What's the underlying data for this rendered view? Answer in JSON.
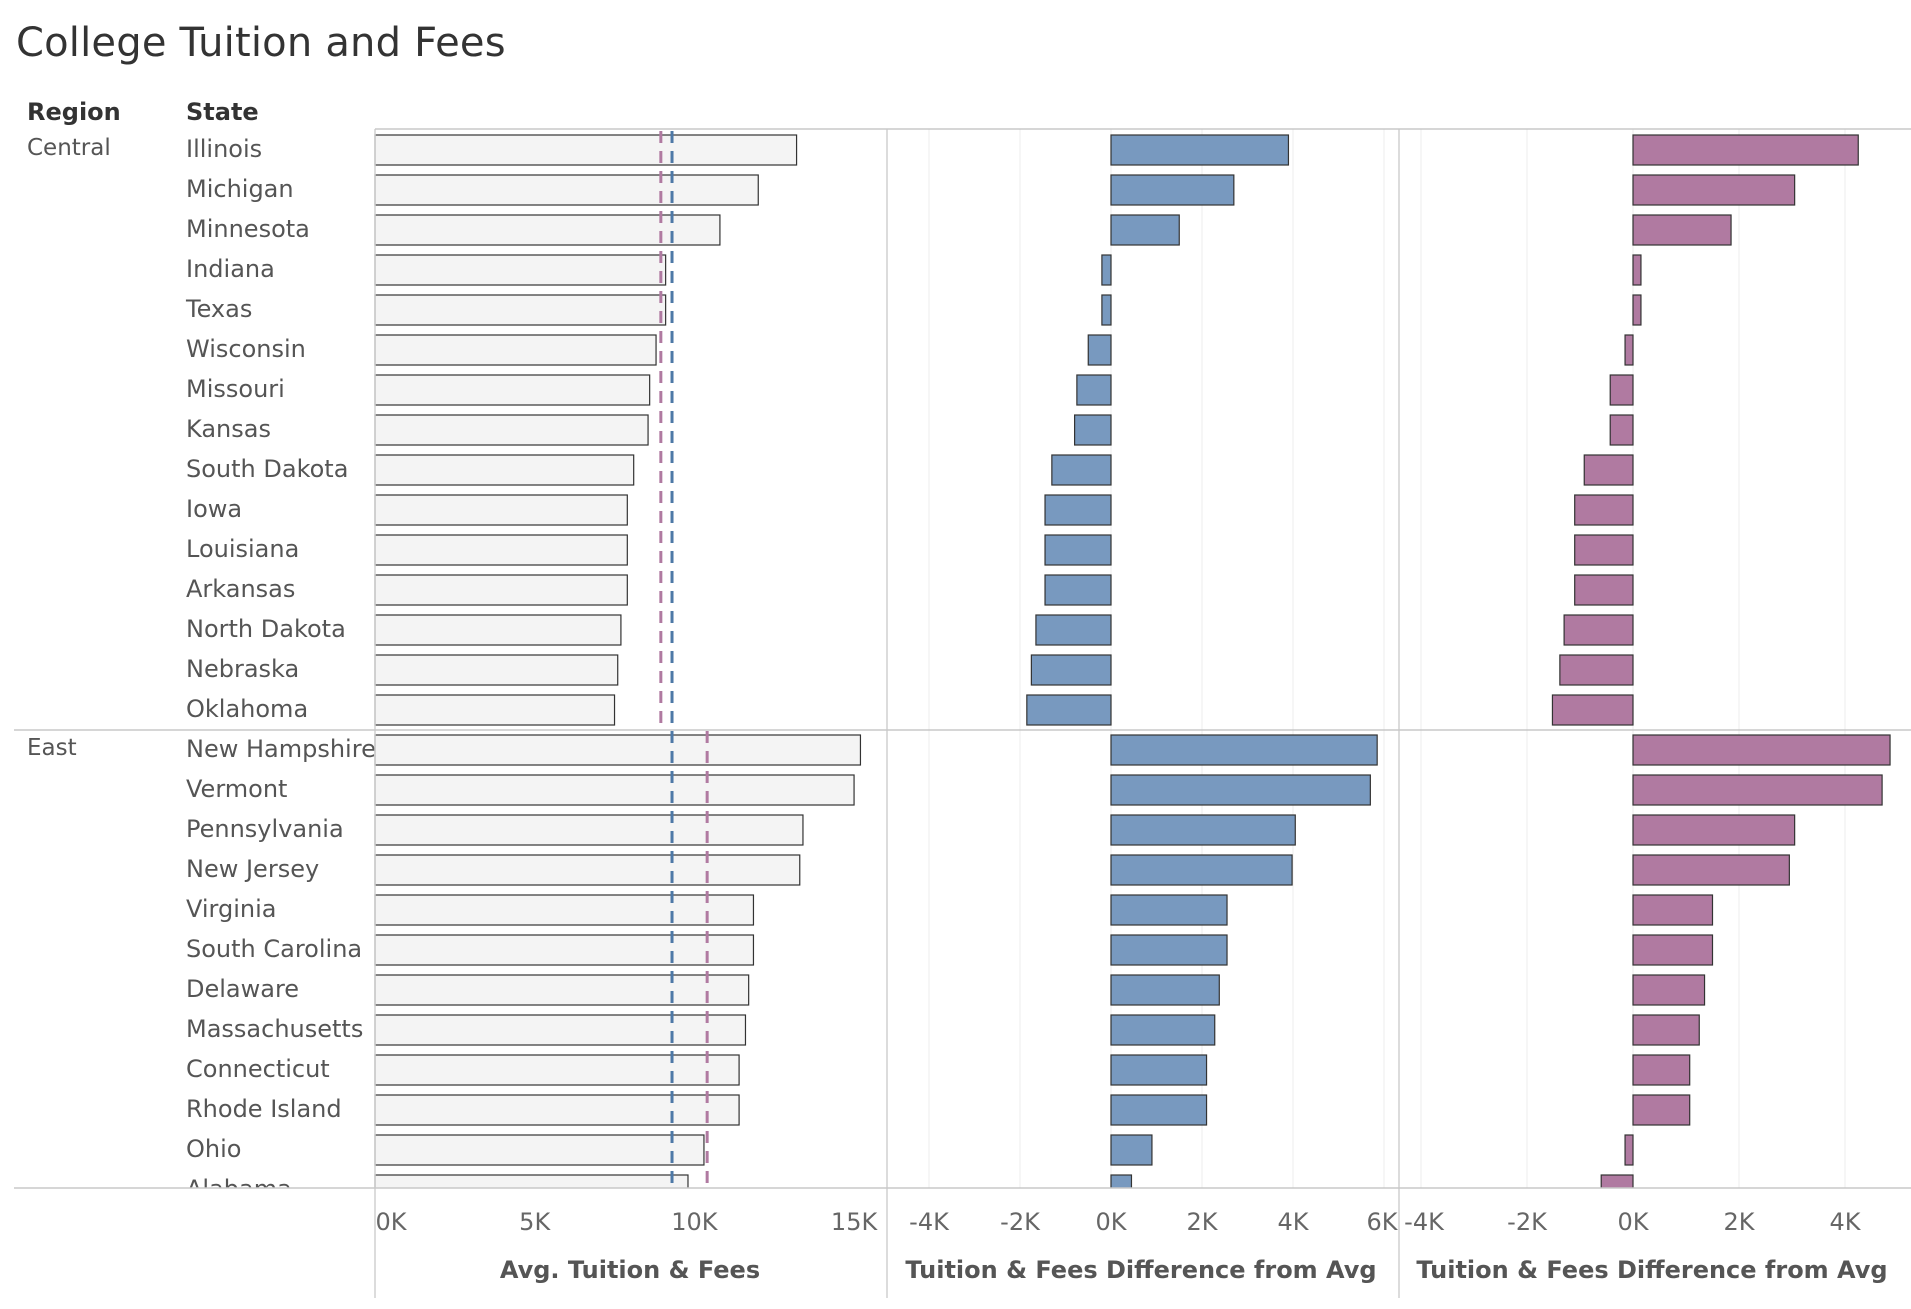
{
  "title": "College Tuition and Fees",
  "headers": {
    "region": "Region",
    "state": "State"
  },
  "colors": {
    "central": "#b07aa1",
    "east": "#4e79a7",
    "diff_blue": "#7899bf",
    "diff_pink": "#b07aa1",
    "bar_fill": "#f4f4f4"
  },
  "chart_data": {
    "type": "bar",
    "title": "College Tuition and Fees",
    "panels": [
      {
        "name": "Avg. Tuition & Fees",
        "xlabel": "Avg. Tuition & Fees",
        "xlim": [
          0,
          16000
        ],
        "ticks": [
          0,
          5000,
          10000,
          15000
        ],
        "tick_labels": [
          "0K",
          "5K",
          "10K",
          "15K"
        ]
      },
      {
        "name": "Tuition & Fees Difference from Avg (overall)",
        "xlabel": "Tuition & Fees Difference from Avg",
        "xlim": [
          -5200,
          6000
        ],
        "ticks": [
          -4000,
          -2000,
          0,
          2000,
          4000,
          6000
        ],
        "tick_labels": [
          "-4K",
          "-2K",
          "0K",
          "2K",
          "4K",
          "6K"
        ]
      },
      {
        "name": "Tuition & Fees Difference from Avg (region)",
        "xlabel": "Tuition & Fees Difference from Avg",
        "xlim": [
          -4400,
          5000
        ],
        "ticks": [
          -4000,
          -2000,
          0,
          2000,
          4000
        ],
        "tick_labels": [
          "-4K",
          "-2K",
          "0K",
          "2K",
          "4K"
        ]
      }
    ],
    "reference_lines": {
      "overall_avg": 9300,
      "central_avg": 8950,
      "east_avg": 10400
    },
    "regions": [
      {
        "region": "Central",
        "states": [
          {
            "state": "Illinois",
            "avg": 13200,
            "diff_overall": 3900,
            "diff_region": 4250
          },
          {
            "state": "Michigan",
            "avg": 12000,
            "diff_overall": 2700,
            "diff_region": 3050
          },
          {
            "state": "Minnesota",
            "avg": 10800,
            "diff_overall": 1500,
            "diff_region": 1850
          },
          {
            "state": "Indiana",
            "avg": 9100,
            "diff_overall": -200,
            "diff_region": 150
          },
          {
            "state": "Texas",
            "avg": 9100,
            "diff_overall": -200,
            "diff_region": 150
          },
          {
            "state": "Wisconsin",
            "avg": 8800,
            "diff_overall": -500,
            "diff_region": -150
          },
          {
            "state": "Missouri",
            "avg": 8600,
            "diff_overall": -750,
            "diff_region": -430
          },
          {
            "state": "Kansas",
            "avg": 8550,
            "diff_overall": -800,
            "diff_region": -430
          },
          {
            "state": "South Dakota",
            "avg": 8100,
            "diff_overall": -1300,
            "diff_region": -920
          },
          {
            "state": "Iowa",
            "avg": 7900,
            "diff_overall": -1450,
            "diff_region": -1100
          },
          {
            "state": "Louisiana",
            "avg": 7900,
            "diff_overall": -1450,
            "diff_region": -1100
          },
          {
            "state": "Arkansas",
            "avg": 7900,
            "diff_overall": -1450,
            "diff_region": -1100
          },
          {
            "state": "North Dakota",
            "avg": 7700,
            "diff_overall": -1650,
            "diff_region": -1300
          },
          {
            "state": "Nebraska",
            "avg": 7600,
            "diff_overall": -1750,
            "diff_region": -1380
          },
          {
            "state": "Oklahoma",
            "avg": 7500,
            "diff_overall": -1850,
            "diff_region": -1520
          }
        ]
      },
      {
        "region": "East",
        "states": [
          {
            "state": "New Hampshire",
            "avg": 15200,
            "diff_overall": 5850,
            "diff_region": 4850
          },
          {
            "state": "Vermont",
            "avg": 15000,
            "diff_overall": 5700,
            "diff_region": 4700
          },
          {
            "state": "Pennsylvania",
            "avg": 13400,
            "diff_overall": 4050,
            "diff_region": 3050
          },
          {
            "state": "New Jersey",
            "avg": 13300,
            "diff_overall": 3980,
            "diff_region": 2950
          },
          {
            "state": "Virginia",
            "avg": 11850,
            "diff_overall": 2550,
            "diff_region": 1500
          },
          {
            "state": "South Carolina",
            "avg": 11850,
            "diff_overall": 2550,
            "diff_region": 1500
          },
          {
            "state": "Delaware",
            "avg": 11700,
            "diff_overall": 2380,
            "diff_region": 1350
          },
          {
            "state": "Massachusetts",
            "avg": 11600,
            "diff_overall": 2280,
            "diff_region": 1250
          },
          {
            "state": "Connecticut",
            "avg": 11400,
            "diff_overall": 2100,
            "diff_region": 1070
          },
          {
            "state": "Rhode Island",
            "avg": 11400,
            "diff_overall": 2100,
            "diff_region": 1070
          },
          {
            "state": "Ohio",
            "avg": 10300,
            "diff_overall": 900,
            "diff_region": -150
          },
          {
            "state": "Alabama",
            "avg": 9800,
            "diff_overall": 450,
            "diff_region": -600
          }
        ]
      }
    ]
  }
}
